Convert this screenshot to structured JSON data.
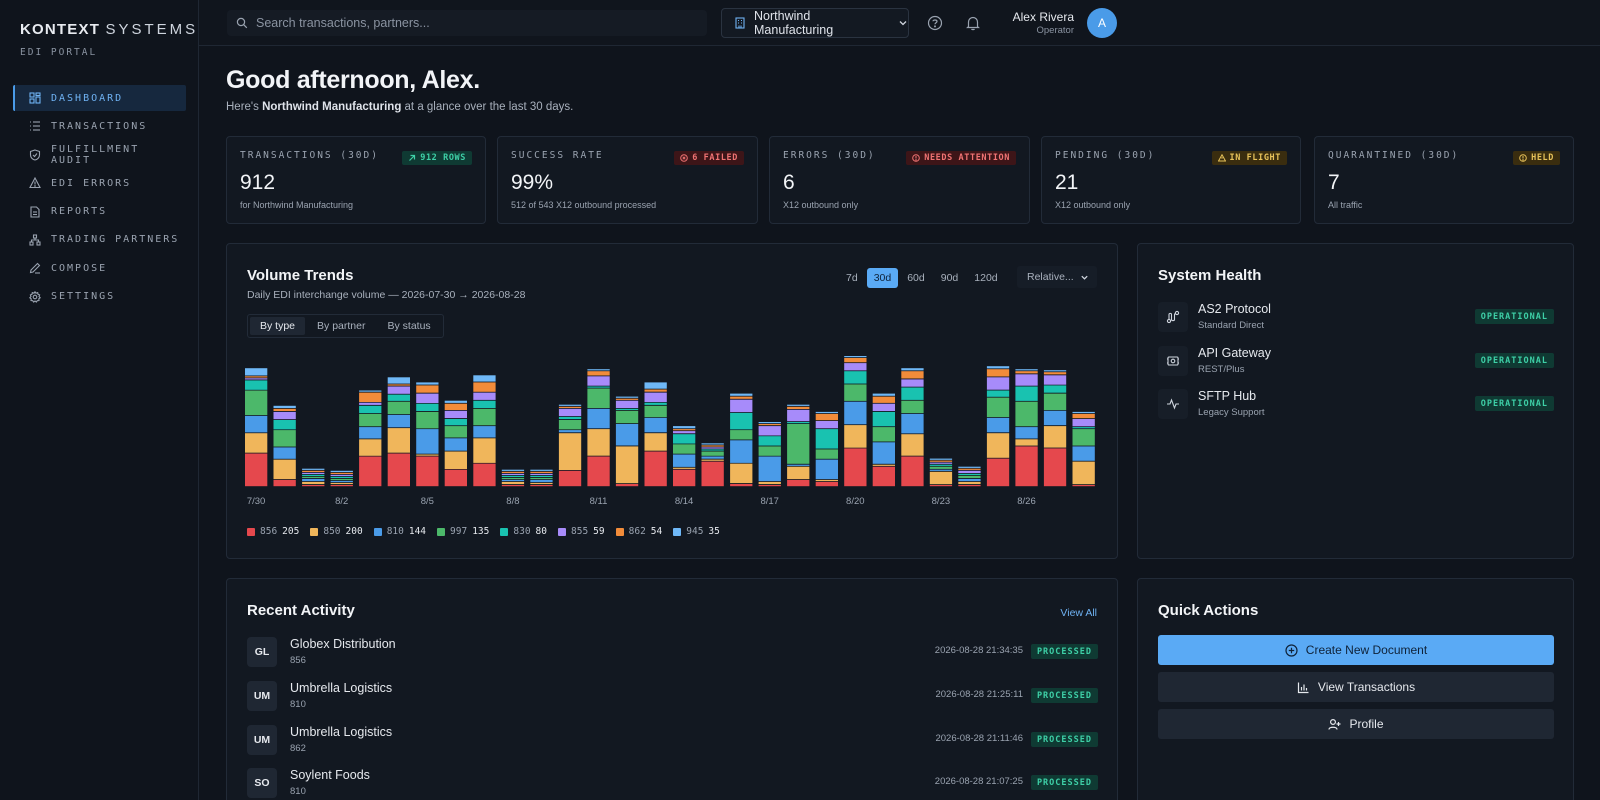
{
  "brand": {
    "name_bold": "KONTEXT",
    "name_light": "SYSTEMS",
    "sub": "EDI PORTAL"
  },
  "nav": [
    {
      "label": "DASHBOARD",
      "icon": "dashboard-icon",
      "active": true
    },
    {
      "label": "TRANSACTIONS",
      "icon": "list-icon",
      "active": false
    },
    {
      "label": "FULFILLMENT AUDIT",
      "icon": "shield-check-icon",
      "active": false
    },
    {
      "label": "EDI ERRORS",
      "icon": "warning-icon",
      "active": false
    },
    {
      "label": "REPORTS",
      "icon": "document-icon",
      "active": false
    },
    {
      "label": "TRADING PARTNERS",
      "icon": "network-icon",
      "active": false
    },
    {
      "label": "COMPOSE",
      "icon": "pen-icon",
      "active": false
    },
    {
      "label": "SETTINGS",
      "icon": "gear-icon",
      "active": false
    }
  ],
  "topbar": {
    "search_placeholder": "Search transactions, partners...",
    "org": "Northwind Manufacturing",
    "user_name": "Alex Rivera",
    "user_role": "Operator",
    "avatar_initial": "A"
  },
  "greeting": {
    "title": "Good afternoon, Alex.",
    "sub_prefix": "Here's ",
    "sub_org": "Northwind Manufacturing",
    "sub_suffix": " at a glance over the last 30 days."
  },
  "stats": [
    {
      "label": "TRANSACTIONS (30D)",
      "value": "912",
      "caption": "for Northwind Manufacturing",
      "badge": "912 ROWS",
      "badge_style": "green",
      "badge_icon": "arrow-up-right-icon"
    },
    {
      "label": "SUCCESS RATE",
      "value": "99%",
      "caption": "512 of 543 X12 outbound processed",
      "badge": "6 FAILED",
      "badge_style": "red",
      "badge_icon": "x-circle-icon"
    },
    {
      "label": "ERRORS (30D)",
      "value": "6",
      "caption": "X12 outbound only",
      "badge": "NEEDS ATTENTION",
      "badge_style": "red",
      "badge_icon": "alert-circle-icon"
    },
    {
      "label": "PENDING (30D)",
      "value": "21",
      "caption": "X12 outbound only",
      "badge": "IN FLIGHT",
      "badge_style": "amber",
      "badge_icon": "warning-icon"
    },
    {
      "label": "QUARANTINED (30D)",
      "value": "7",
      "caption": "All traffic",
      "badge": "HELD",
      "badge_style": "amber",
      "badge_icon": "alert-circle-icon"
    }
  ],
  "volume": {
    "title": "Volume Trends",
    "subtitle": "Daily EDI interchange volume — 2026-07-30 → 2026-08-28",
    "ranges": [
      "7d",
      "30d",
      "60d",
      "90d",
      "120d"
    ],
    "active_range": "30d",
    "relative_label": "Relative...",
    "tabs": [
      "By type",
      "By partner",
      "By status"
    ],
    "active_tab": "By type"
  },
  "chart_data": {
    "type": "bar",
    "stacked": true,
    "categories": [
      "7/30",
      "7/31",
      "8/1",
      "8/2",
      "8/3",
      "8/4",
      "8/5",
      "8/6",
      "8/7",
      "8/8",
      "8/9",
      "8/10",
      "8/11",
      "8/12",
      "8/13",
      "8/14",
      "8/15",
      "8/16",
      "8/17",
      "8/18",
      "8/19",
      "8/20",
      "8/21",
      "8/22",
      "8/23",
      "8/24",
      "8/25",
      "8/26",
      "8/27",
      "8/28"
    ],
    "tick_labels": [
      "7/30",
      "8/2",
      "8/5",
      "8/8",
      "8/11",
      "8/14",
      "8/17",
      "8/20",
      "8/23",
      "8/26"
    ],
    "series": [
      {
        "name": "856",
        "count": "205",
        "color": "#e5484d",
        "values": [
          33,
          7,
          2,
          2,
          30,
          33,
          30,
          17,
          23,
          2,
          2,
          16,
          30,
          3,
          35,
          17,
          25,
          3,
          2,
          7,
          5,
          38,
          20,
          30,
          2,
          2,
          28,
          40,
          38,
          2
        ]
      },
      {
        "name": "850",
        "count": "200",
        "color": "#f0b65b",
        "values": [
          20,
          20,
          3,
          2,
          17,
          25,
          2,
          18,
          25,
          3,
          2,
          37,
          27,
          37,
          18,
          2,
          2,
          20,
          3,
          13,
          2,
          23,
          2,
          22,
          13,
          3,
          25,
          7,
          22,
          23
        ]
      },
      {
        "name": "810",
        "count": "144",
        "color": "#4a9be8",
        "values": [
          17,
          12,
          3,
          2,
          12,
          13,
          25,
          13,
          12,
          2,
          3,
          3,
          20,
          22,
          15,
          13,
          3,
          23,
          25,
          2,
          20,
          23,
          22,
          20,
          2,
          3,
          15,
          12,
          15,
          15
        ]
      },
      {
        "name": "997",
        "count": "135",
        "color": "#4cb86a",
        "values": [
          25,
          17,
          2,
          2,
          13,
          13,
          17,
          12,
          17,
          2,
          2,
          10,
          20,
          13,
          12,
          10,
          5,
          10,
          10,
          40,
          10,
          17,
          15,
          13,
          3,
          3,
          20,
          25,
          17,
          17
        ]
      },
      {
        "name": "830",
        "count": "80",
        "color": "#19c2b0",
        "values": [
          10,
          10,
          2,
          2,
          8,
          7,
          8,
          7,
          8,
          2,
          2,
          3,
          2,
          2,
          3,
          10,
          2,
          17,
          10,
          2,
          20,
          13,
          15,
          13,
          2,
          2,
          7,
          15,
          8,
          2
        ]
      },
      {
        "name": "855",
        "count": "59",
        "color": "#a78bfa",
        "values": [
          2,
          8,
          2,
          2,
          3,
          8,
          10,
          8,
          8,
          2,
          2,
          8,
          10,
          8,
          10,
          3,
          2,
          13,
          10,
          12,
          8,
          8,
          8,
          8,
          2,
          3,
          13,
          12,
          10,
          8
        ]
      },
      {
        "name": "862",
        "count": "54",
        "color": "#f28c3a",
        "values": [
          2,
          3,
          2,
          2,
          10,
          2,
          8,
          7,
          10,
          2,
          2,
          2,
          5,
          2,
          3,
          2,
          2,
          3,
          2,
          3,
          7,
          5,
          7,
          8,
          2,
          2,
          8,
          3,
          3,
          5
        ]
      },
      {
        "name": "945",
        "count": "35",
        "color": "#6fb8f7",
        "values": [
          8,
          3,
          2,
          2,
          2,
          7,
          3,
          3,
          7,
          2,
          2,
          2,
          2,
          2,
          7,
          3,
          2,
          3,
          2,
          2,
          2,
          2,
          3,
          3,
          2,
          2,
          3,
          2,
          2,
          2
        ]
      }
    ]
  },
  "health": {
    "title": "System Health",
    "services": [
      {
        "name": "AS2 Protocol",
        "desc": "Standard Direct",
        "status": "OPERATIONAL",
        "icon": "route-icon"
      },
      {
        "name": "API Gateway",
        "desc": "REST/Plus",
        "status": "OPERATIONAL",
        "icon": "gateway-icon"
      },
      {
        "name": "SFTP Hub",
        "desc": "Legacy Support",
        "status": "OPERATIONAL",
        "icon": "activity-icon"
      }
    ]
  },
  "activity": {
    "title": "Recent Activity",
    "view_all": "View All",
    "rows": [
      {
        "initials": "GL",
        "partner": "Globex Distribution",
        "type": "856",
        "time": "2026-08-28 21:34:35",
        "status": "PROCESSED"
      },
      {
        "initials": "UM",
        "partner": "Umbrella Logistics",
        "type": "810",
        "time": "2026-08-28 21:25:11",
        "status": "PROCESSED"
      },
      {
        "initials": "UM",
        "partner": "Umbrella Logistics",
        "type": "862",
        "time": "2026-08-28 21:11:46",
        "status": "PROCESSED"
      },
      {
        "initials": "SO",
        "partner": "Soylent Foods",
        "type": "810",
        "time": "2026-08-28 21:07:25",
        "status": "PROCESSED"
      }
    ]
  },
  "quick_actions": {
    "title": "Quick Actions",
    "buttons": [
      {
        "label": "Create New Document",
        "icon": "plus-circle-icon",
        "style": "primary"
      },
      {
        "label": "View Transactions",
        "icon": "bar-chart-icon",
        "style": "secondary"
      },
      {
        "label": "Profile",
        "icon": "user-plus-icon",
        "style": "secondary"
      }
    ]
  }
}
